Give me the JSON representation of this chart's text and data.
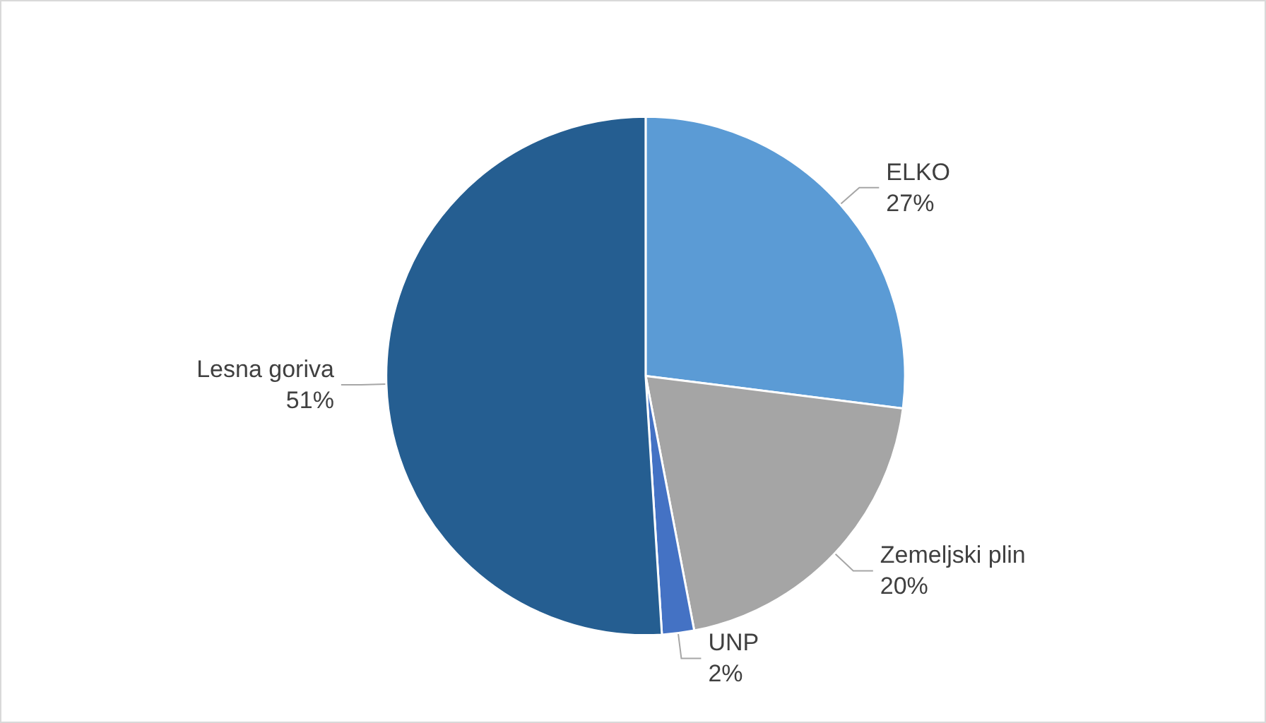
{
  "chart_data": {
    "type": "pie",
    "categories": [
      "ELKO",
      "Zemeljski plin",
      "UNP",
      "Lesna goriva"
    ],
    "values": [
      27,
      20,
      2,
      51
    ],
    "value_labels": [
      "27%",
      "20%",
      "2%",
      "51%"
    ],
    "colors": [
      "#5b9bd5",
      "#a5a5a5",
      "#4472c4",
      "#255e91"
    ],
    "legend": false
  }
}
